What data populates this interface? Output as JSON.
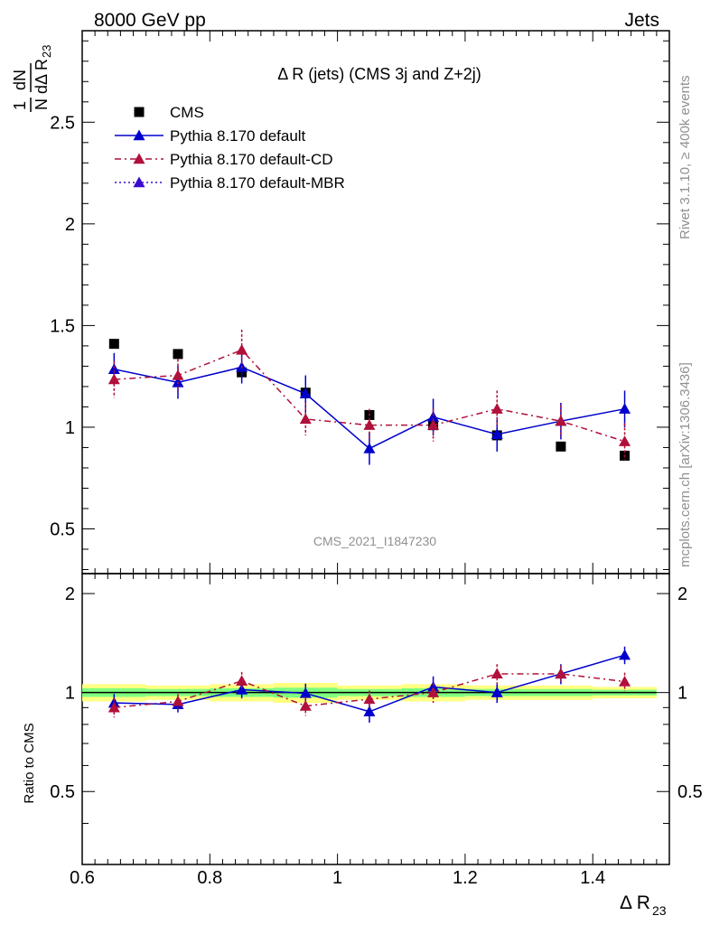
{
  "header": {
    "left": "8000 GeV pp",
    "right": "Jets"
  },
  "side_text": {
    "rivet": "Rivet 3.1.10, ≥ 400k events",
    "mcplots": "mcplots.cern.ch [arXiv:1306.3436]"
  },
  "watermark": "CMS_2021_I1847230",
  "chart_data": [
    {
      "type": "scatter",
      "title": "Δ R (jets) (CMS 3j and Z+2j)",
      "ylabel": "1/N dN/dΔ R23",
      "xlim": [
        0.6,
        1.52
      ],
      "ylim": [
        0.28,
        2.95
      ],
      "yticks": [
        0.5,
        1,
        1.5,
        2,
        2.5
      ],
      "ytick_labels": [
        "0.5",
        "1",
        "1.5",
        "2",
        "2.5"
      ],
      "legend_position": "top-left",
      "x": [
        0.65,
        0.75,
        0.85,
        0.95,
        1.05,
        1.15,
        1.25,
        1.35,
        1.45
      ],
      "series": [
        {
          "name": "CMS",
          "color": "#000000",
          "marker": "square",
          "values": [
            1.41,
            1.36,
            1.27,
            1.17,
            1.06,
            1.01,
            0.96,
            0.905,
            0.86
          ]
        },
        {
          "name": "Pythia 8.170 default",
          "color": "#0000cc",
          "marker": "triangle",
          "line": "solid",
          "values": [
            1.285,
            1.22,
            1.295,
            1.165,
            0.895,
            1.05,
            0.965,
            1.03,
            1.09
          ],
          "errors": [
            0.08,
            0.08,
            0.08,
            0.09,
            0.08,
            0.09,
            0.085,
            0.09,
            0.09
          ]
        },
        {
          "name": "Pythia 8.170 default-CD",
          "color": "#b0103a",
          "marker": "triangle",
          "line": "dashdot",
          "values": [
            1.235,
            1.255,
            1.38,
            1.04,
            1.01,
            1.01,
            1.09,
            1.03,
            0.93
          ],
          "errors": [
            0.09,
            0.08,
            0.1,
            0.08,
            0.08,
            0.08,
            0.09,
            0.08,
            0.09
          ]
        },
        {
          "name": "Pythia 8.170 default-MBR",
          "color": "#3a0ad0",
          "marker": "triangle",
          "line": "dotted",
          "values": []
        }
      ]
    },
    {
      "type": "scatter",
      "title": "",
      "xlabel": "Δ R23",
      "ylabel": "Ratio to CMS",
      "xlim": [
        0.6,
        1.52
      ],
      "ylim": [
        0.3,
        2.3
      ],
      "xticks": [
        0.6,
        0.8,
        1.0,
        1.2,
        1.4
      ],
      "xtick_labels": [
        "0.6",
        "0.8",
        "1",
        "1.2",
        "1.4"
      ],
      "yticks": [
        0.5,
        1,
        2
      ],
      "ytick_labels": [
        "0.5",
        "1",
        "2"
      ],
      "x": [
        0.65,
        0.75,
        0.85,
        0.95,
        1.05,
        1.15,
        1.25,
        1.35,
        1.45
      ],
      "bands": {
        "yellow_halfwidth": [
          0.06,
          0.05,
          0.06,
          0.07,
          0.05,
          0.06,
          0.05,
          0.05,
          0.04
        ],
        "green_halfwidth": [
          0.03,
          0.025,
          0.03,
          0.035,
          0.025,
          0.03,
          0.025,
          0.025,
          0.02
        ],
        "yellow_color": "#ffff80",
        "green_color": "#7fff7f"
      },
      "series": [
        {
          "name": "Pythia 8.170 default",
          "color": "#0000cc",
          "values": [
            0.93,
            0.92,
            1.02,
            0.995,
            0.875,
            1.04,
            1.0,
            1.14,
            1.3
          ],
          "errors": [
            0.06,
            0.05,
            0.06,
            0.07,
            0.065,
            0.08,
            0.07,
            0.08,
            0.08
          ]
        },
        {
          "name": "Pythia 8.170 default-CD",
          "color": "#b0103a",
          "values": [
            0.9,
            0.94,
            1.085,
            0.91,
            0.955,
            1.0,
            1.14,
            1.14,
            1.08
          ],
          "errors": [
            0.06,
            0.05,
            0.07,
            0.06,
            0.06,
            0.07,
            0.08,
            0.07,
            0.07
          ]
        }
      ]
    }
  ]
}
